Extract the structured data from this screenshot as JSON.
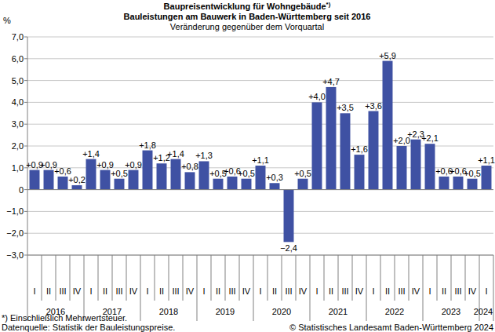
{
  "chart_data": {
    "type": "bar",
    "title": "Baupreisentwicklung für Wohngebäude",
    "title_note": "*)",
    "subtitle": "Bauleistungen am Bauwerk in Baden-Württemberg seit 2016",
    "subtitle2": "Veränderung gegenüber dem Vorquartal",
    "y_label": "%",
    "categories": [
      "I",
      "II",
      "III",
      "IV",
      "I",
      "II",
      "III",
      "IV",
      "I",
      "II",
      "III",
      "IV",
      "I",
      "II",
      "III",
      "IV",
      "I",
      "II",
      "III",
      "IV",
      "I",
      "II",
      "III",
      "IV",
      "I",
      "II",
      "III",
      "IV",
      "I",
      "II",
      "III",
      "IV",
      "I"
    ],
    "groups": [
      {
        "label": "2016",
        "size": 4
      },
      {
        "label": "2017",
        "size": 4
      },
      {
        "label": "2018",
        "size": 4
      },
      {
        "label": "2019",
        "size": 4
      },
      {
        "label": "2020",
        "size": 4
      },
      {
        "label": "2021",
        "size": 4
      },
      {
        "label": "2022",
        "size": 4
      },
      {
        "label": "2023",
        "size": 4
      },
      {
        "label": "2024",
        "size": 1
      }
    ],
    "values": [
      0.9,
      0.9,
      0.6,
      0.2,
      1.4,
      0.9,
      0.5,
      0.9,
      1.8,
      1.2,
      1.4,
      0.8,
      1.3,
      0.5,
      0.6,
      0.5,
      1.1,
      0.3,
      -2.4,
      0.5,
      4.0,
      4.7,
      3.5,
      1.6,
      3.6,
      5.9,
      2.0,
      2.3,
      2.1,
      0.6,
      0.6,
      0.5,
      1.1
    ],
    "value_labels": [
      "+0,9",
      "+0,9",
      "+0,6",
      "+0,2",
      "+1,4",
      "+0,9",
      "+0,5",
      "+0,9",
      "+1,8",
      "+1,2",
      "+1,4",
      "+0,8",
      "+1,3",
      "+0,5",
      "+0,6",
      "+0,5",
      "+1,1",
      "+0,3",
      "−2,4",
      "+0,5",
      "+4,0",
      "+4,7",
      "+3,5",
      "+1,6",
      "+3,6",
      "+5,9",
      "+2,0",
      "+2,3",
      "+2,1",
      "+0,6",
      "+0,6",
      "+0,5",
      "+1,1"
    ],
    "data_labels": true,
    "color": "#3f51a3",
    "grid": true,
    "ylim": [
      -3,
      7
    ],
    "yticks": [
      {
        "value": -3,
        "label": "−3,0"
      },
      {
        "value": -2,
        "label": "−2,0"
      },
      {
        "value": -1,
        "label": "−1,0"
      },
      0,
      {
        "value": 1,
        "label": "1,0"
      },
      {
        "value": 2,
        "label": "2,0"
      },
      {
        "value": 3,
        "label": "3,0"
      },
      {
        "value": 4,
        "label": "4,0"
      },
      {
        "value": 5,
        "label": "5,0"
      },
      {
        "value": 6,
        "label": "6,0"
      },
      {
        "value": 7,
        "label": "7,0"
      }
    ],
    "footnote": "*) Einschließlich Mehrwertsteuer.",
    "source": "Datenquelle: Statistik der Bauleistungspreise.",
    "copyright": "© Statistisches Landesamt Baden-Württemberg 2024"
  }
}
